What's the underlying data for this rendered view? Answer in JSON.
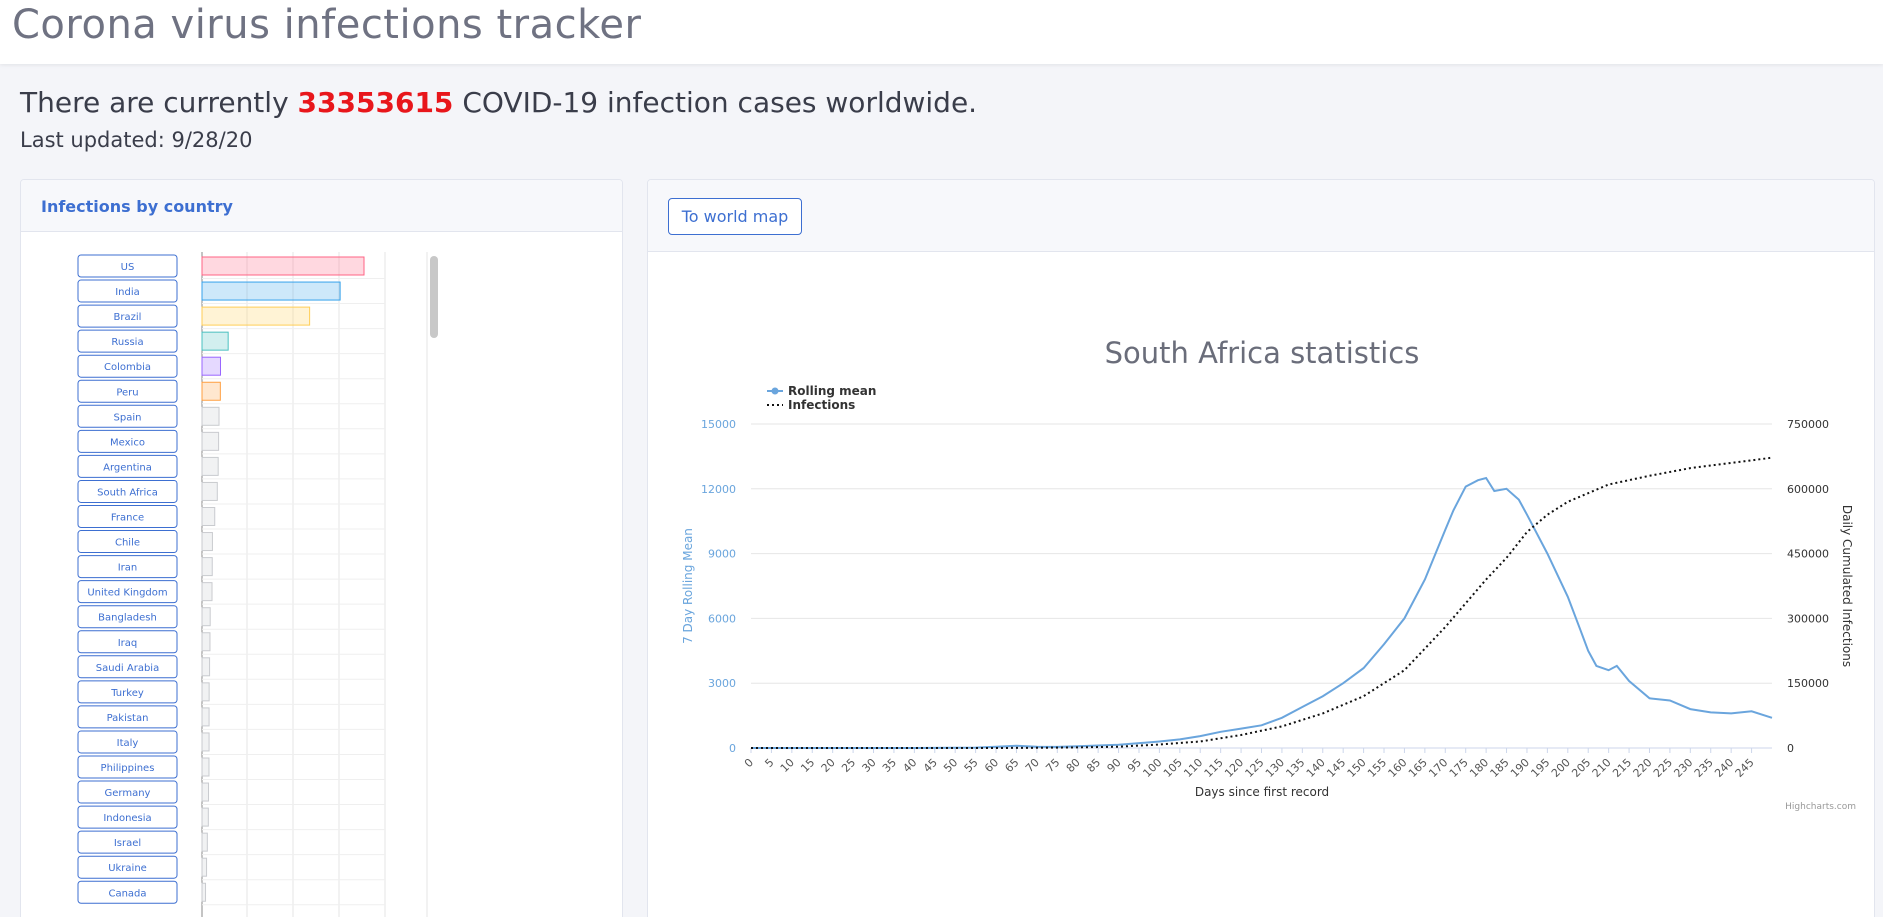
{
  "app": {
    "title": "Corona virus infections tracker",
    "headline_prefix": "There are currently",
    "total_cases": "33353615",
    "headline_suffix": "COVID-19 infection cases worldwide.",
    "last_updated": "Last updated: 9/28/20"
  },
  "left_panel": {
    "title": "Infections by country",
    "countries": [
      {
        "name": "US",
        "value": 7120000,
        "color": "#ff6384"
      },
      {
        "name": "India",
        "value": 6070000,
        "color": "#36a2eb"
      },
      {
        "name": "Brazil",
        "value": 4730000,
        "color": "#ffce56"
      },
      {
        "name": "Russia",
        "value": 1150000,
        "color": "#4bc0c0"
      },
      {
        "name": "Colombia",
        "value": 813000,
        "color": "#9966ff"
      },
      {
        "name": "Peru",
        "value": 806000,
        "color": "#ff9f40"
      },
      {
        "name": "Spain",
        "value": 748000,
        "color": "#c9cbcf"
      },
      {
        "name": "Mexico",
        "value": 730000,
        "color": "#c9cbcf"
      },
      {
        "name": "Argentina",
        "value": 711000,
        "color": "#c9cbcf"
      },
      {
        "name": "South Africa",
        "value": 672000,
        "color": "#c9cbcf"
      },
      {
        "name": "France",
        "value": 560000,
        "color": "#c9cbcf"
      },
      {
        "name": "Chile",
        "value": 458000,
        "color": "#c9cbcf"
      },
      {
        "name": "Iran",
        "value": 450000,
        "color": "#c9cbcf"
      },
      {
        "name": "United Kingdom",
        "value": 440000,
        "color": "#c9cbcf"
      },
      {
        "name": "Bangladesh",
        "value": 360000,
        "color": "#c9cbcf"
      },
      {
        "name": "Iraq",
        "value": 350000,
        "color": "#c9cbcf"
      },
      {
        "name": "Saudi Arabia",
        "value": 333000,
        "color": "#c9cbcf"
      },
      {
        "name": "Turkey",
        "value": 314000,
        "color": "#c9cbcf"
      },
      {
        "name": "Pakistan",
        "value": 311000,
        "color": "#c9cbcf"
      },
      {
        "name": "Italy",
        "value": 311000,
        "color": "#c9cbcf"
      },
      {
        "name": "Philippines",
        "value": 307000,
        "color": "#c9cbcf"
      },
      {
        "name": "Germany",
        "value": 287000,
        "color": "#c9cbcf"
      },
      {
        "name": "Indonesia",
        "value": 278000,
        "color": "#c9cbcf"
      },
      {
        "name": "Israel",
        "value": 234000,
        "color": "#c9cbcf"
      },
      {
        "name": "Ukraine",
        "value": 200000,
        "color": "#c9cbcf"
      },
      {
        "name": "Canada",
        "value": 155000,
        "color": "#c9cbcf"
      }
    ]
  },
  "right_panel": {
    "world_map_button": "To world map"
  },
  "chart_data": {
    "type": "line",
    "title": "South Africa statistics",
    "xlabel": "Days since first record",
    "ylabel_left": "7 Day Rolling Mean",
    "ylabel_right": "Daily Cumulated Infections",
    "x_range": [
      0,
      250
    ],
    "x_ticks": [
      0,
      5,
      10,
      15,
      20,
      25,
      30,
      35,
      40,
      45,
      50,
      55,
      60,
      65,
      70,
      75,
      80,
      85,
      90,
      95,
      100,
      105,
      110,
      115,
      120,
      125,
      130,
      135,
      140,
      145,
      150,
      155,
      160,
      165,
      170,
      175,
      180,
      185,
      190,
      195,
      200,
      205,
      210,
      215,
      220,
      225,
      230,
      235,
      240,
      245
    ],
    "y_left_ticks": [
      0,
      3000,
      6000,
      9000,
      12000,
      15000
    ],
    "y_right_ticks": [
      0,
      150000,
      300000,
      450000,
      600000,
      750000
    ],
    "ylim_left": [
      0,
      15000
    ],
    "ylim_right": [
      0,
      750000
    ],
    "legend_position": "top-left",
    "credit": "Highcharts.com",
    "series": [
      {
        "name": "Rolling mean",
        "axis": "left",
        "color": "#6aa5dd",
        "style": "solid",
        "x": [
          0,
          20,
          40,
          55,
          60,
          65,
          70,
          75,
          80,
          90,
          100,
          105,
          110,
          115,
          120,
          125,
          130,
          135,
          140,
          145,
          150,
          155,
          160,
          165,
          170,
          172,
          175,
          178,
          180,
          182,
          185,
          188,
          190,
          195,
          200,
          203,
          205,
          207,
          210,
          212,
          215,
          220,
          225,
          230,
          235,
          240,
          245,
          250
        ],
        "y": [
          0,
          0,
          0,
          20,
          60,
          100,
          60,
          50,
          80,
          150,
          300,
          400,
          550,
          750,
          900,
          1050,
          1400,
          1900,
          2400,
          3000,
          3700,
          4800,
          6000,
          7800,
          10100,
          11000,
          12100,
          12400,
          12500,
          11900,
          12000,
          11500,
          10800,
          9000,
          7000,
          5500,
          4500,
          3800,
          3600,
          3800,
          3100,
          2300,
          2200,
          1800,
          1650,
          1600,
          1700,
          1400
        ]
      },
      {
        "name": "Infections",
        "axis": "right",
        "color": "#111111",
        "style": "dotted",
        "x": [
          0,
          20,
          40,
          60,
          70,
          80,
          90,
          100,
          110,
          120,
          130,
          140,
          150,
          160,
          170,
          180,
          185,
          190,
          195,
          200,
          210,
          220,
          230,
          240,
          250
        ],
        "y": [
          0,
          0,
          0,
          100,
          500,
          1500,
          3000,
          8000,
          15000,
          30000,
          50000,
          80000,
          120000,
          180000,
          280000,
          390000,
          440000,
          500000,
          540000,
          570000,
          610000,
          630000,
          648000,
          660000,
          672000
        ]
      }
    ]
  }
}
